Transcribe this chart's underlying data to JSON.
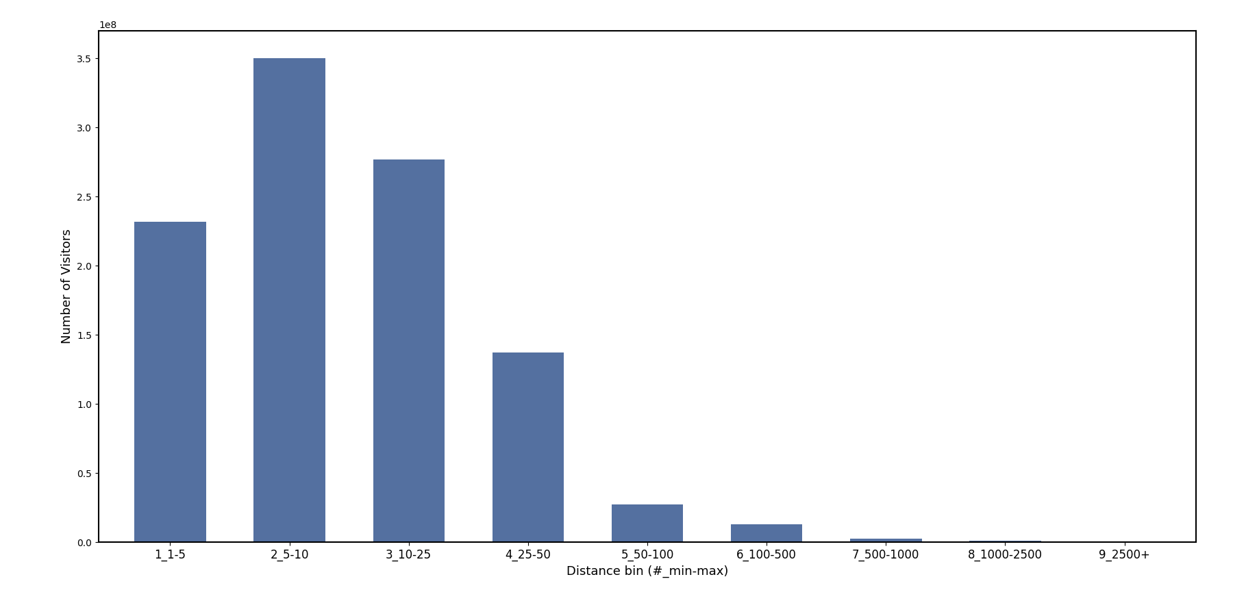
{
  "categories": [
    "1_1-5",
    "2_5-10",
    "3_10-25",
    "4_25-50",
    "5_50-100",
    "6_100-500",
    "7_500-1000",
    "8_1000-2500",
    "9_2500+"
  ],
  "values": [
    232000000.0,
    350000000.0,
    277000000.0,
    137000000.0,
    27000000.0,
    13000000.0,
    2500000.0,
    1000000.0,
    500000.0
  ],
  "bar_color": "#5470a0",
  "xlabel": "Distance bin (#_min-max)",
  "ylabel": "Number of Visitors",
  "ylim": [
    0,
    370000000.0
  ],
  "background_color": "#ffffff",
  "tick_fontsize": 12,
  "label_fontsize": 13,
  "bar_width": 0.6
}
